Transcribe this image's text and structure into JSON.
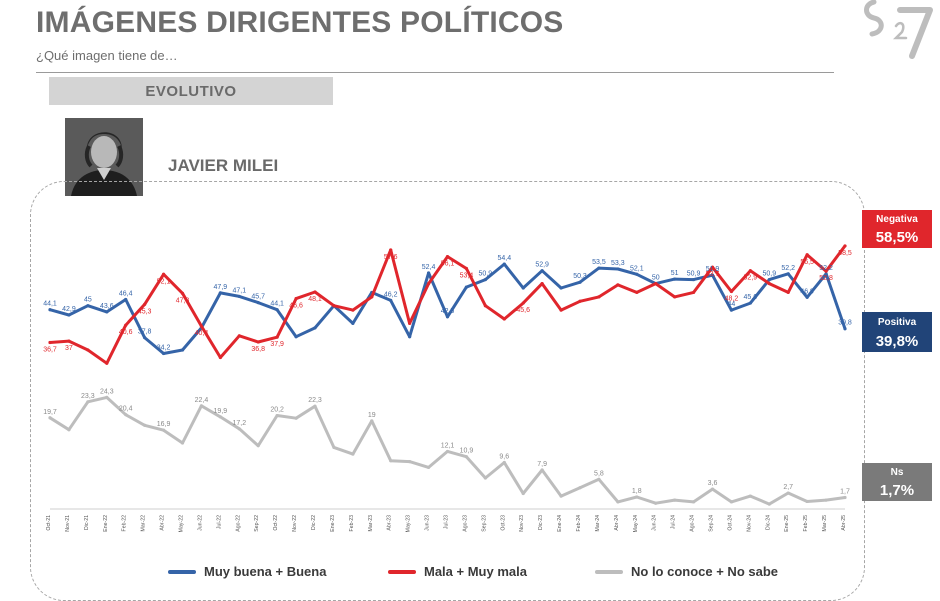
{
  "header": {
    "title": "IMÁGENES DIRIGENTES POLÍTICOS",
    "subtitle": "¿Qué imagen tiene de…",
    "tab_label": "EVOLUTIVO",
    "person_name": "JAVIER MILEI"
  },
  "colors": {
    "positive": "#3564a8",
    "negative": "#e0262c",
    "unknown": "#bdbdbd",
    "badge_positive": "#214478",
    "badge_negative": "#e0262c",
    "badge_unknown": "#7a7a7a"
  },
  "badges": {
    "negative": {
      "name": "Negativa",
      "value": "58,5%"
    },
    "positive": {
      "name": "Positiva",
      "value": "39,8%"
    },
    "unknown": {
      "name": "Ns",
      "value": "1,7%"
    }
  },
  "legend": [
    {
      "label": "Muy buena + Buena",
      "color": "#3564a8"
    },
    {
      "label": "Mala + Muy mala",
      "color": "#e0262c"
    },
    {
      "label": "No lo conoce + No sabe",
      "color": "#bdbdbd"
    }
  ],
  "chart_data": {
    "type": "line",
    "title": "",
    "xlabel": "",
    "ylabel": "",
    "ylim": [
      0,
      70
    ],
    "grid": false,
    "legend_position": "bottom",
    "x": [
      "Oct-21",
      "Nov-21",
      "Dic-21",
      "Ene-22",
      "Feb-22",
      "Mar-22",
      "Abr-22",
      "May-22",
      "Jun-22",
      "Jul-22",
      "Ago-22",
      "Sep-22",
      "Oct-22",
      "Nov-22",
      "Dic-22",
      "Ene-23",
      "Feb-23",
      "Mar-23",
      "Abr-23",
      "May-23",
      "Jun-23",
      "Jul-23",
      "Ago-23",
      "Sep-23",
      "Oct-23",
      "Nov-23",
      "Dic-23",
      "Ene-24",
      "Feb-24",
      "Mar-24",
      "Abr-24",
      "May-24",
      "Jun-24",
      "Jul-24",
      "Ago-24",
      "Sep-24",
      "Oct-24",
      "Nov-24",
      "Dic-24",
      "Ene-25",
      "Feb-25",
      "Mar-25",
      "Abr-25"
    ],
    "series": [
      {
        "name": "Muy buena + Buena",
        "values": [
          44.1,
          42.9,
          45.0,
          43.6,
          46.4,
          37.8,
          34.2,
          35.0,
          40.0,
          47.9,
          47.1,
          45.7,
          44.1,
          38.0,
          40.0,
          45.0,
          41.0,
          48.0,
          46.2,
          38.0,
          52.4,
          42.5,
          49.2,
          50.9,
          54.4,
          49.0,
          52.9,
          49.0,
          50.3,
          53.5,
          53.3,
          52.1,
          50.0,
          51.0,
          50.9,
          51.9,
          44.0,
          45.6,
          50.9,
          52.2,
          46.9,
          52.2,
          39.8
        ],
        "labels": [
          "44,1",
          "42,9",
          "45",
          "43,6",
          "46,4",
          "37,8",
          "34,2",
          "",
          "",
          "47,9",
          "47,1",
          "45,7",
          "44,1",
          "",
          "",
          "",
          "",
          "",
          "46,2",
          "",
          "52,4",
          "42,5",
          "",
          "50,9",
          "54,4",
          "",
          "52,9",
          "",
          "50,3",
          "53,5",
          "53,3",
          "52,1",
          "50",
          "51",
          "50,9",
          "51,9",
          "44",
          "45,6",
          "50,9",
          "52,2",
          "46,9",
          "52,2",
          "39,8"
        ]
      },
      {
        "name": "Mala + Muy mala",
        "values": [
          36.7,
          37.0,
          35.0,
          32.0,
          40.6,
          45.3,
          52.1,
          47.8,
          40.4,
          33.3,
          38.2,
          36.8,
          37.9,
          46.6,
          48.1,
          45.0,
          44.0,
          47.0,
          57.6,
          41.0,
          50.0,
          56.1,
          53.4,
          45.0,
          42.0,
          45.6,
          50.0,
          44.0,
          46.0,
          47.0,
          49.7,
          48.0,
          50.0,
          47.0,
          48.0,
          53.7,
          48.2,
          52.9,
          50.0,
          48.0,
          56.5,
          52.8,
          58.5
        ],
        "labels": [
          "36,7",
          "37",
          "",
          "",
          "40,6",
          "45,3",
          "52,1",
          "47,8",
          "40,4",
          "",
          "",
          "36,8",
          "37,9",
          "46,6",
          "48,1",
          "",
          "",
          "",
          "57,6",
          "",
          "",
          "56,1",
          "53,4",
          "",
          "",
          "45,6",
          "",
          "",
          "",
          "",
          "",
          "",
          "",
          "",
          "",
          "53,7",
          "48,2",
          "52,9",
          "",
          "",
          "56,5",
          "52,8",
          "58,5"
        ]
      },
      {
        "name": "No lo conoce + No sabe",
        "values": [
          19.7,
          17.0,
          23.3,
          24.3,
          20.4,
          18.0,
          16.9,
          14.0,
          22.4,
          19.9,
          17.2,
          13.4,
          20.2,
          19.6,
          22.3,
          13.0,
          11.5,
          19.0,
          10.0,
          9.8,
          8.5,
          12.1,
          10.9,
          6.1,
          9.6,
          2.6,
          7.9,
          2.0,
          3.9,
          5.8,
          0.7,
          1.8,
          0.4,
          1.1,
          0.7,
          3.6,
          0.7,
          2.0,
          0.2,
          2.7,
          0.8,
          1.1,
          1.7
        ],
        "labels": [
          "19,7",
          "",
          "23,3",
          "24,3",
          "20,4",
          "",
          "16,9",
          "",
          "22,4",
          "19,9",
          "17,2",
          "",
          "20,2",
          "",
          "22,3",
          "",
          "",
          "19",
          "",
          "",
          "",
          "12,1",
          "10,9",
          "",
          "9,6",
          "",
          "7,9",
          "",
          "",
          "5,8",
          "",
          "1,8",
          "",
          "",
          "",
          "3,6",
          "",
          "",
          "",
          "2,7",
          "",
          "",
          "1,7"
        ]
      }
    ]
  }
}
